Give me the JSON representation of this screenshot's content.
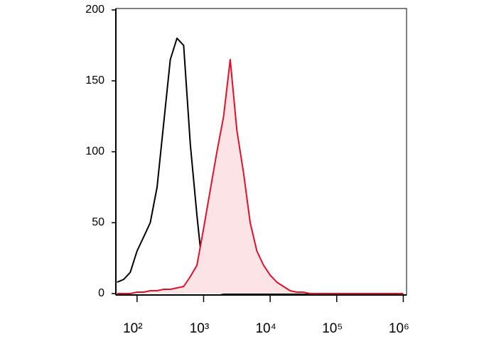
{
  "chart_data": {
    "type": "histogram-overlay",
    "log_x": true,
    "x": [
      50,
      63,
      79,
      100,
      126,
      158,
      200,
      251,
      316,
      398,
      501,
      631,
      794,
      1000,
      1259,
      1585,
      1995,
      2512,
      3162,
      3981,
      5012,
      6310,
      7943,
      10000,
      12589,
      15849,
      19953,
      25119,
      31623,
      39811,
      50119,
      63096,
      251189,
      1000000
    ],
    "series": [
      {
        "color": "#000000",
        "fill": "none",
        "values": [
          8,
          10,
          15,
          30,
          40,
          50,
          75,
          120,
          165,
          180,
          175,
          105,
          55,
          10,
          2,
          1,
          0,
          0,
          0,
          0,
          0,
          0,
          0,
          0,
          0,
          0,
          0,
          0,
          0,
          0,
          0,
          0,
          0,
          0
        ]
      },
      {
        "color": "#e0102a",
        "fill": "#fce4e6",
        "values": [
          0,
          0,
          0,
          1,
          1,
          2,
          2,
          3,
          3,
          4,
          5,
          12,
          20,
          46,
          73,
          100,
          125,
          165,
          115,
          85,
          50,
          30,
          20,
          13,
          8,
          5,
          2,
          1,
          1,
          0,
          0,
          0,
          0,
          0
        ]
      }
    ],
    "xlim": [
      48,
      1120000
    ],
    "ylim": [
      0,
      200
    ],
    "xticks": [
      {
        "value": 100,
        "label": "10²"
      },
      {
        "value": 1000,
        "label": "10³"
      },
      {
        "value": 10000,
        "label": "10⁴"
      },
      {
        "value": 100000,
        "label": "10⁵"
      },
      {
        "value": 1000000,
        "label": "10⁶"
      }
    ],
    "yticks": [
      0,
      50,
      100,
      150,
      200
    ]
  }
}
